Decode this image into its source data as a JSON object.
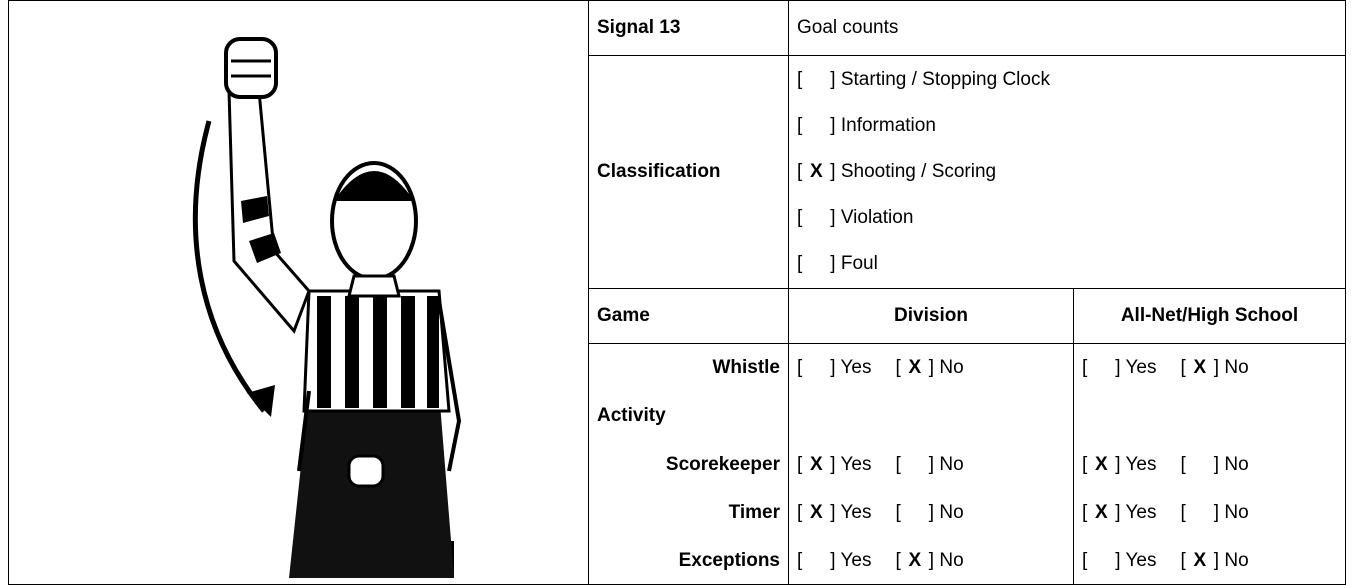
{
  "signal": {
    "label": "Signal 13",
    "name": "Goal counts"
  },
  "classification": {
    "label": "Classification",
    "options": [
      {
        "label": "Starting / Stopping Clock"
      },
      {
        "label": "Information"
      },
      {
        "mark": "X",
        "label": "Shooting / Scoring"
      },
      {
        "label": "Violation"
      },
      {
        "label": "Foul"
      }
    ]
  },
  "table": {
    "headers": [
      "Game",
      "Division",
      "All-Net/High School"
    ],
    "rows": [
      {
        "label": "Whistle",
        "division": [
          {
            "label": "Yes"
          },
          {
            "mark": "X",
            "label": "No"
          }
        ],
        "all_net": [
          {
            "label": "Yes"
          },
          {
            "mark": "X",
            "label": "No"
          }
        ]
      },
      {
        "label": "Activity"
      },
      {
        "label": "Scorekeeper",
        "division": [
          {
            "mark": "X",
            "label": "Yes"
          },
          {
            "label": "No"
          }
        ],
        "all_net": [
          {
            "mark": "X",
            "label": "Yes"
          },
          {
            "label": "No"
          }
        ]
      },
      {
        "label": "Timer",
        "division": [
          {
            "mark": "X",
            "label": "Yes"
          },
          {
            "label": "No"
          }
        ],
        "all_net": [
          {
            "mark": "X",
            "label": "Yes"
          },
          {
            "label": "No"
          }
        ]
      },
      {
        "label": "Exceptions",
        "division": [
          {
            "label": "Yes"
          },
          {
            "mark": "X",
            "label": "No"
          }
        ],
        "all_net": [
          {
            "label": "Yes"
          },
          {
            "mark": "X",
            "label": "No"
          }
        ]
      }
    ]
  }
}
